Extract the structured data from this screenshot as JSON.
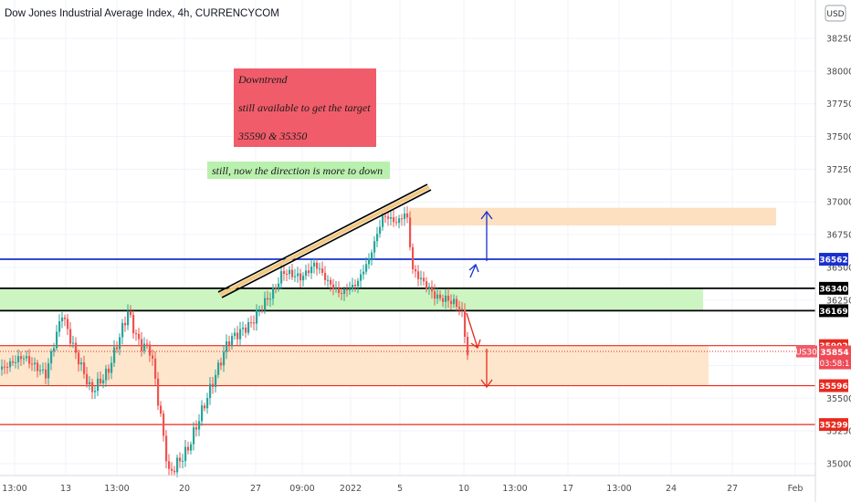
{
  "chart_data": {
    "type": "candlestick",
    "title": "Dow Jones Industrial Average Index, 4h, CURRENCYCOM",
    "currency_label": "USD",
    "ylim": [
      34860,
      38440
    ],
    "price_ticks": [
      "38250",
      "38000",
      "37750",
      "37500",
      "37250",
      "37000",
      "36750",
      "36500",
      "36250",
      "35750",
      "35500",
      "35250",
      "35000"
    ],
    "time_ticks": [
      "13:00",
      "13",
      "13:00",
      "20",
      "27",
      "09:00",
      "2022",
      "5",
      "10",
      "13:00",
      "17",
      "13:00",
      "24",
      "27",
      "Feb"
    ],
    "levels": [
      {
        "label": "36562",
        "value": 36562,
        "color": "#1a2fcf",
        "text_color": "#ffffff"
      },
      {
        "label": "36340",
        "value": 36340,
        "color": "#000000",
        "text_color": "#ffffff"
      },
      {
        "label": "36169",
        "value": 36169,
        "color": "#000000",
        "text_color": "#ffffff"
      },
      {
        "label": "35902",
        "value": 35902,
        "color": "#e8291e",
        "text_color": "#ffffff"
      },
      {
        "label": "35596",
        "value": 35596,
        "color": "#e8291e",
        "text_color": "#ffffff"
      },
      {
        "label": "35299",
        "value": 35299,
        "color": "#e8291e",
        "text_color": "#ffffff"
      }
    ],
    "current_price": {
      "symbol": "US30",
      "price": "35854",
      "countdown": "03:58:1",
      "value": 35854
    },
    "zones": [
      {
        "from": 36169,
        "to": 36340,
        "color": "#ccf5c2"
      },
      {
        "from": 35596,
        "to": 35902,
        "color": "#fde6cc"
      },
      {
        "from": 36820,
        "to": 36955,
        "color": "#fde0bf"
      }
    ],
    "annotations": {
      "box_lines": [
        "Downtrend",
        "still available to get the target",
        "35590 & 35350"
      ],
      "note": "still, now the direction is more to down"
    },
    "colors": {
      "up": "#26a69a",
      "down": "#ef5350",
      "grid": "#f0f3fa"
    }
  }
}
